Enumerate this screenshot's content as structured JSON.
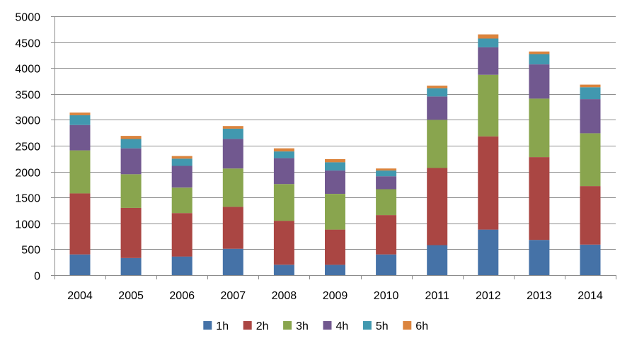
{
  "chart_data": {
    "type": "bar",
    "stacked": true,
    "title": "",
    "xlabel": "",
    "ylabel": "",
    "ylim": [
      0,
      5000
    ],
    "yticks": [
      0,
      500,
      1000,
      1500,
      2000,
      2500,
      3000,
      3500,
      4000,
      4500,
      5000
    ],
    "grid": true,
    "legend_position": "bottom",
    "categories": [
      "2004",
      "2005",
      "2006",
      "2007",
      "2008",
      "2009",
      "2010",
      "2011",
      "2012",
      "2013",
      "2014"
    ],
    "series": [
      {
        "name": "1h",
        "color": "#4572A7",
        "values": [
          400,
          330,
          360,
          510,
          200,
          200,
          400,
          580,
          880,
          680,
          590
        ]
      },
      {
        "name": "2h",
        "color": "#AA4643",
        "values": [
          1180,
          970,
          840,
          810,
          850,
          680,
          760,
          1490,
          1800,
          1600,
          1130
        ]
      },
      {
        "name": "3h",
        "color": "#89A54E",
        "values": [
          830,
          650,
          490,
          740,
          710,
          690,
          500,
          930,
          1190,
          1130,
          1020
        ]
      },
      {
        "name": "4h",
        "color": "#71588F",
        "values": [
          490,
          500,
          420,
          570,
          500,
          450,
          250,
          450,
          530,
          660,
          660
        ]
      },
      {
        "name": "5h",
        "color": "#4198AF",
        "values": [
          190,
          180,
          140,
          200,
          130,
          160,
          110,
          160,
          170,
          200,
          230
        ]
      },
      {
        "name": "6h",
        "color": "#DB843D",
        "values": [
          50,
          60,
          50,
          50,
          60,
          60,
          40,
          50,
          80,
          50,
          50
        ]
      }
    ]
  }
}
